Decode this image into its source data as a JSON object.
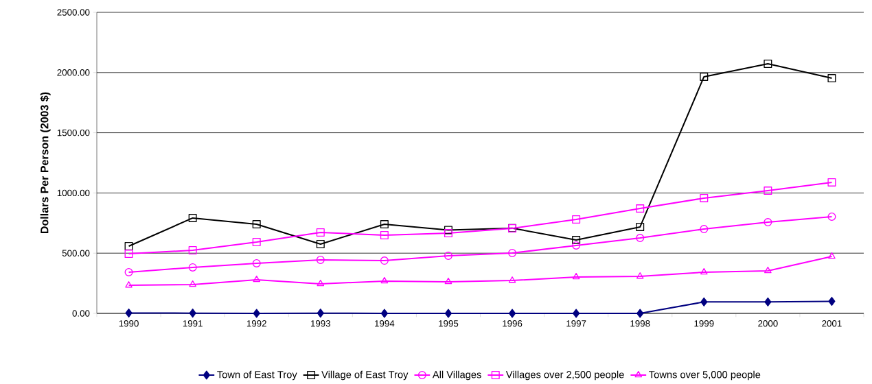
{
  "chart_data": {
    "type": "line",
    "ylabel": "Dollars Per Person (2003 $)",
    "categories": [
      "1990",
      "1991",
      "1992",
      "1993",
      "1994",
      "1995",
      "1996",
      "1997",
      "1998",
      "1999",
      "2000",
      "2001"
    ],
    "series": [
      {
        "name": "Town of East Troy",
        "color": "#000080",
        "marker": "diamond",
        "values": [
          3,
          2,
          0,
          2,
          0,
          0,
          0,
          0,
          0,
          95,
          95,
          100
        ]
      },
      {
        "name": "Village of East Troy",
        "color": "#000000",
        "marker": "square",
        "values": [
          558,
          792,
          740,
          575,
          740,
          692,
          708,
          609,
          718,
          1965,
          2073,
          1953
        ]
      },
      {
        "name": "All Villages",
        "color": "#ff00ff",
        "marker": "circle",
        "values": [
          342,
          382,
          416,
          444,
          438,
          478,
          501,
          564,
          626,
          700,
          757,
          803
        ]
      },
      {
        "name": "Villages over 2,500 people",
        "color": "#ff00ff",
        "marker": "square",
        "values": [
          495,
          524,
          592,
          672,
          649,
          666,
          706,
          780,
          871,
          957,
          1019,
          1088
        ]
      },
      {
        "name": "Towns over 5,000 people",
        "color": "#ff00ff",
        "marker": "triangle",
        "values": [
          233,
          239,
          279,
          245,
          268,
          262,
          273,
          302,
          307,
          342,
          353,
          473
        ]
      }
    ],
    "ylim": [
      0,
      2500
    ],
    "yticks": [
      {
        "value": 0,
        "label": "0.00"
      },
      {
        "value": 500,
        "label": "500.00"
      },
      {
        "value": 1000,
        "label": "1000.00"
      },
      {
        "value": 1500,
        "label": "1500.00"
      },
      {
        "value": 2000,
        "label": "2000.00"
      },
      {
        "value": 2500,
        "label": "2500.00"
      }
    ],
    "grid": "y",
    "legend": "bottom",
    "line_style": "solid"
  }
}
